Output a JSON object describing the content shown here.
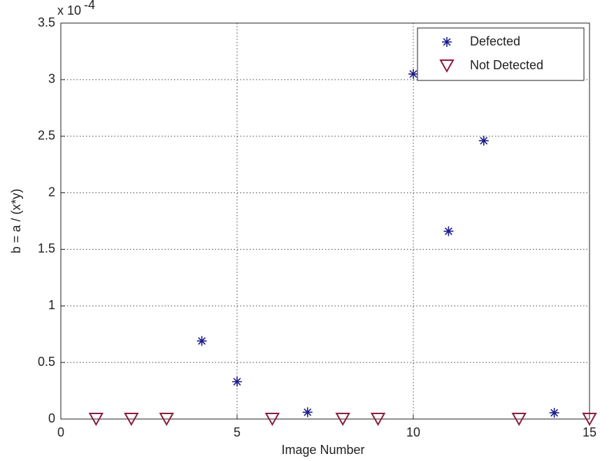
{
  "chart_data": {
    "type": "scatter",
    "xlabel": "Image Number",
    "ylabel": "b = a / (x*y)",
    "y_multiplier": "x 10",
    "y_multiplier_exponent": "-4",
    "xlim": [
      0,
      15
    ],
    "xticks": [
      0,
      5,
      10,
      15
    ],
    "ylim": [
      0,
      3.5
    ],
    "yticks": [
      0,
      0.5,
      1,
      1.5,
      2,
      2.5,
      3,
      3.5
    ],
    "grid": true,
    "legend": "northeast",
    "series": [
      {
        "name": "Defected",
        "color": "#1c1c8a",
        "marker": "asterisk",
        "x": [
          4,
          5,
          7,
          10,
          11,
          12,
          14
        ],
        "values": [
          0.69,
          0.33,
          0.06,
          3.05,
          1.66,
          2.46,
          0.055
        ]
      },
      {
        "name": "Not Detected",
        "color": "#8a1e3c",
        "marker": "triangle-down",
        "x": [
          1,
          2,
          3,
          6,
          8,
          9,
          13,
          15
        ],
        "values": [
          0,
          0,
          0,
          0,
          0,
          0,
          0,
          0
        ]
      }
    ]
  }
}
